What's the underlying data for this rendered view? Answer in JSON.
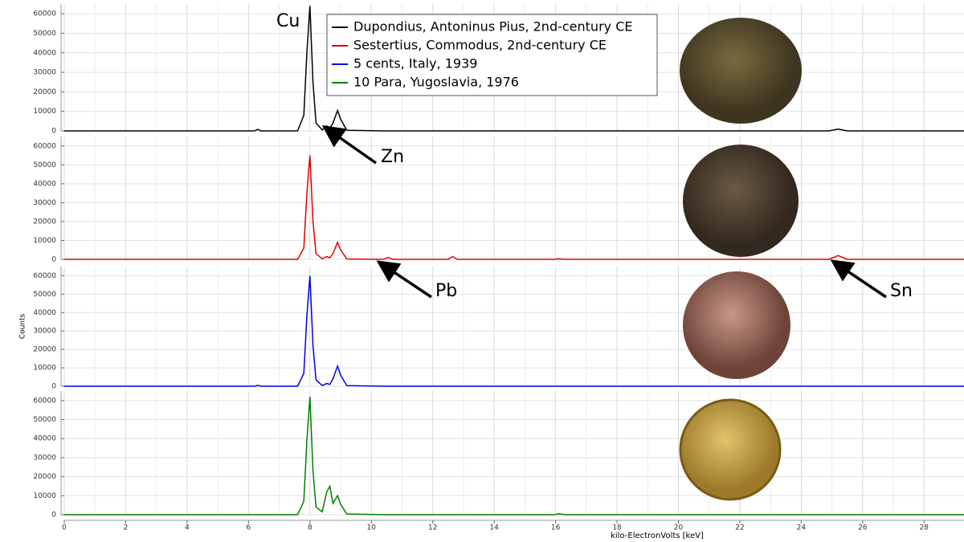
{
  "chart_data": [
    {
      "type": "line",
      "x": [
        0,
        6.2,
        6.3,
        6.4,
        7.6,
        7.8,
        7.9,
        8.0,
        8.1,
        8.2,
        8.4,
        8.55,
        8.65,
        8.75,
        8.9,
        9.0,
        9.2,
        10.4,
        10.55,
        10.7,
        12.5,
        12.65,
        12.8,
        16.0,
        16.1,
        16.3,
        24.9,
        25.2,
        25.5,
        29.3
      ],
      "xlim": [
        0,
        29.3
      ],
      "ylim": [
        0,
        65000
      ],
      "yticks": [
        0,
        10000,
        20000,
        30000,
        40000,
        50000,
        60000
      ],
      "grid": true,
      "series": [
        {
          "name": "Dupondius, Antoninus Pius, 2nd-century CE",
          "color": "#000000",
          "values": [
            0,
            0,
            800,
            0,
            0,
            8000,
            40000,
            64000,
            25000,
            4000,
            500,
            2500,
            1500,
            4000,
            10500,
            6000,
            300,
            0,
            0,
            0,
            0,
            0,
            0,
            0,
            0,
            0,
            0,
            900,
            0,
            0
          ]
        }
      ],
      "annotations": [
        "Cu",
        "Zn"
      ]
    },
    {
      "type": "line",
      "x": [
        0,
        6.2,
        6.3,
        6.4,
        7.6,
        7.8,
        7.9,
        8.0,
        8.1,
        8.2,
        8.4,
        8.55,
        8.65,
        8.75,
        8.9,
        9.0,
        9.2,
        10.4,
        10.55,
        10.7,
        12.5,
        12.65,
        12.8,
        16.0,
        16.1,
        16.3,
        24.9,
        25.2,
        25.5,
        29.3
      ],
      "xlim": [
        0,
        29.3
      ],
      "ylim": [
        0,
        65000
      ],
      "yticks": [
        0,
        10000,
        20000,
        30000,
        40000,
        50000,
        60000
      ],
      "grid": true,
      "series": [
        {
          "name": "Sestertius, Commodus, 2nd-century CE",
          "color": "#e00000",
          "values": [
            0,
            0,
            0,
            0,
            0,
            6000,
            35000,
            55000,
            20000,
            3000,
            300,
            1500,
            800,
            3000,
            9000,
            5000,
            200,
            0,
            1000,
            0,
            0,
            1500,
            0,
            0,
            300,
            0,
            0,
            2000,
            0,
            0
          ]
        }
      ],
      "annotations": [
        "Pb",
        "Sn"
      ]
    },
    {
      "type": "line",
      "x": [
        0,
        6.2,
        6.3,
        6.4,
        7.6,
        7.8,
        7.9,
        8.0,
        8.1,
        8.2,
        8.4,
        8.55,
        8.65,
        8.75,
        8.9,
        9.0,
        9.2,
        10.4,
        10.55,
        10.7,
        12.5,
        12.65,
        12.8,
        16.0,
        16.1,
        16.3,
        24.9,
        25.2,
        25.5,
        29.3
      ],
      "xlim": [
        0,
        29.3
      ],
      "ylim": [
        0,
        65000
      ],
      "yticks": [
        0,
        10000,
        20000,
        30000,
        40000,
        50000,
        60000
      ],
      "grid": true,
      "ylabel": "Counts",
      "series": [
        {
          "name": "5 cents, Italy, 1939",
          "color": "#0000e0",
          "values": [
            0,
            0,
            500,
            0,
            0,
            7000,
            38000,
            60000,
            22000,
            3500,
            400,
            1500,
            1000,
            4000,
            11000,
            6000,
            300,
            0,
            0,
            0,
            0,
            0,
            0,
            0,
            0,
            0,
            0,
            0,
            0,
            0
          ]
        }
      ]
    },
    {
      "type": "line",
      "x": [
        0,
        6.2,
        6.3,
        6.4,
        7.6,
        7.8,
        7.9,
        8.0,
        8.1,
        8.2,
        8.4,
        8.55,
        8.65,
        8.75,
        8.9,
        9.0,
        9.2,
        10.4,
        10.55,
        10.7,
        12.5,
        12.65,
        12.8,
        16.0,
        16.1,
        16.3,
        24.9,
        25.2,
        25.5,
        29.3
      ],
      "xlim": [
        0,
        29.3
      ],
      "ylim": [
        0,
        65000
      ],
      "yticks": [
        0,
        10000,
        20000,
        30000,
        40000,
        50000,
        60000
      ],
      "grid": true,
      "xlabel": "kilo-ElectronVolts [keV]",
      "xticks": [
        0,
        2,
        4,
        6,
        8,
        10,
        12,
        14,
        16,
        18,
        20,
        22,
        24,
        26,
        28
      ],
      "series": [
        {
          "name": "10 Para, Yugoslavia, 1976",
          "color": "#008000",
          "values": [
            0,
            0,
            0,
            0,
            0,
            7000,
            39000,
            62000,
            23000,
            4000,
            1500,
            12000,
            15000,
            6000,
            10000,
            5500,
            400,
            0,
            0,
            0,
            0,
            0,
            0,
            0,
            500,
            0,
            0,
            0,
            0,
            0
          ]
        }
      ]
    }
  ]
}
